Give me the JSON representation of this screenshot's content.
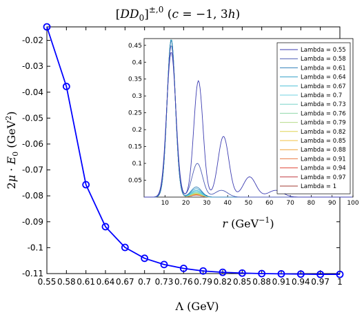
{
  "chart_data": [
    {
      "type": "line",
      "title": "[DD_0]^{±,0} (c = −1, 3h)",
      "xlabel": "Λ (GeV)",
      "ylabel": "2μ · E_0 (GeV²)",
      "x": [
        0.55,
        0.58,
        0.61,
        0.64,
        0.67,
        0.7,
        0.73,
        0.76,
        0.79,
        0.82,
        0.85,
        0.88,
        0.91,
        0.94,
        0.97,
        1
      ],
      "x_tick_labels": [
        "0.55",
        "0.58",
        "0.61",
        "0.64",
        "0.67",
        "0.7",
        "0.73",
        "0.76",
        "0.79",
        "0.82",
        "0.85",
        "0.88",
        "0.91",
        "0.94",
        "0.97",
        "1"
      ],
      "y_ticks": [
        -0.02,
        -0.03,
        -0.04,
        -0.05,
        -0.06,
        -0.07,
        -0.08,
        -0.09,
        -0.1,
        -0.11
      ],
      "y_tick_labels": [
        "-0.02",
        "-0.03",
        "-0.04",
        "-0.05",
        "-0.06",
        "-0.07",
        "-0.08",
        "-0.09",
        "-0.1",
        "-0.11"
      ],
      "ylim": [
        -0.11,
        -0.0148
      ],
      "xlim": [
        0.55,
        1
      ],
      "grid": false,
      "series": [
        {
          "color": "#0000ff",
          "marker": "circle-open",
          "values": [
            -0.0148,
            -0.0378,
            -0.0757,
            -0.0919,
            -0.0999,
            -0.1041,
            -0.1065,
            -0.108,
            -0.109,
            -0.1095,
            -0.1098,
            -0.11,
            -0.1101,
            -0.1102,
            -0.1103,
            -0.1103
          ]
        }
      ]
    },
    {
      "type": "line",
      "xlabel": "r (GeV^{-1})",
      "ylabel": "",
      "xlim": [
        0,
        100
      ],
      "ylim": [
        0,
        0.47
      ],
      "x_ticks": [
        10,
        20,
        30,
        40,
        50,
        60,
        70,
        80,
        90,
        100
      ],
      "x_tick_labels": [
        "10",
        "20",
        "30",
        "40",
        "50",
        "60",
        "70",
        "80",
        "90",
        "100"
      ],
      "y_ticks": [
        0.05,
        0.1,
        0.15,
        0.2,
        0.25,
        0.3,
        0.35,
        0.4,
        0.45
      ],
      "y_tick_labels": [
        "0.05",
        "0.1",
        "0.15",
        "0.2",
        "0.25",
        "0.3",
        "0.35",
        "0.4",
        "0.45"
      ],
      "legend_position": "top-right",
      "series": [
        {
          "name": "Lambda = 0.55",
          "color": "#3b3bb0",
          "peaks": [
            {
              "r": 13,
              "h": 0.43,
              "w": 2.2
            },
            {
              "r": 26,
              "h": 0.345,
              "w": 2.2
            },
            {
              "r": 38,
              "h": 0.18,
              "w": 2.6
            },
            {
              "r": 50.5,
              "h": 0.06,
              "w": 3
            },
            {
              "r": 63,
              "h": 0.02,
              "w": 3.5
            }
          ]
        },
        {
          "name": "Lambda = 0.58",
          "color": "#4a5ab4",
          "peaks": [
            {
              "r": 13,
              "h": 0.45,
              "w": 2.1
            },
            {
              "r": 25.5,
              "h": 0.1,
              "w": 2.5
            },
            {
              "r": 37,
              "h": 0.02,
              "w": 3
            }
          ]
        },
        {
          "name": "Lambda = 0.61",
          "color": "#2f7fb8",
          "peaks": [
            {
              "r": 13,
              "h": 0.465,
              "w": 2
            },
            {
              "r": 25,
              "h": 0.03,
              "w": 2.5
            }
          ]
        },
        {
          "name": "Lambda = 0.64",
          "color": "#35a0c8",
          "peaks": [
            {
              "r": 13,
              "h": 0.468,
              "w": 2
            },
            {
              "r": 25,
              "h": 0.025,
              "w": 2.5
            }
          ]
        },
        {
          "name": "Lambda = 0.67",
          "color": "#4fc0d8",
          "peaks": [
            {
              "r": 13,
              "h": 0.468,
              "w": 2
            },
            {
              "r": 25,
              "h": 0.02,
              "w": 2.5
            }
          ]
        },
        {
          "name": "Lambda = 0.7",
          "color": "#6fd0e0",
          "peaks": [
            {
              "r": 13,
              "h": 0.468,
              "w": 2
            },
            {
              "r": 25,
              "h": 0.018,
              "w": 2.5
            }
          ]
        },
        {
          "name": "Lambda = 0.73",
          "color": "#79d4c8",
          "peaks": [
            {
              "r": 13,
              "h": 0.468,
              "w": 2
            },
            {
              "r": 25,
              "h": 0.015,
              "w": 2.5
            }
          ]
        },
        {
          "name": "Lambda = 0.76",
          "color": "#8ed8a8",
          "peaks": [
            {
              "r": 13,
              "h": 0.468,
              "w": 2
            },
            {
              "r": 25,
              "h": 0.013,
              "w": 2.5
            }
          ]
        },
        {
          "name": "Lambda = 0.79",
          "color": "#b4dc88",
          "peaks": [
            {
              "r": 13,
              "h": 0.468,
              "w": 2
            },
            {
              "r": 25,
              "h": 0.011,
              "w": 2.5
            }
          ]
        },
        {
          "name": "Lambda = 0.82",
          "color": "#e0d450",
          "peaks": [
            {
              "r": 13,
              "h": 0.468,
              "w": 2
            },
            {
              "r": 25,
              "h": 0.01,
              "w": 2.5
            }
          ]
        },
        {
          "name": "Lambda = 0.85",
          "color": "#f0c040",
          "peaks": [
            {
              "r": 13,
              "h": 0.468,
              "w": 2
            },
            {
              "r": 25,
              "h": 0.009,
              "w": 2.5
            }
          ]
        },
        {
          "name": "Lambda = 0.88",
          "color": "#f0a030",
          "peaks": [
            {
              "r": 13,
              "h": 0.468,
              "w": 2
            },
            {
              "r": 25,
              "h": 0.008,
              "w": 2.5
            }
          ]
        },
        {
          "name": "Lambda = 0.91",
          "color": "#e87840",
          "peaks": [
            {
              "r": 13,
              "h": 0.468,
              "w": 2
            },
            {
              "r": 25,
              "h": 0.008,
              "w": 2.5
            }
          ]
        },
        {
          "name": "Lambda = 0.94",
          "color": "#e04a3a",
          "peaks": [
            {
              "r": 13,
              "h": 0.468,
              "w": 2
            },
            {
              "r": 25,
              "h": 0.007,
              "w": 2.5
            }
          ]
        },
        {
          "name": "Lambda = 0.97",
          "color": "#c03a40",
          "peaks": [
            {
              "r": 13,
              "h": 0.468,
              "w": 2
            },
            {
              "r": 25,
              "h": 0.007,
              "w": 2.5
            }
          ]
        },
        {
          "name": "Lambda = 1",
          "color": "#a03830",
          "peaks": [
            {
              "r": 13,
              "h": 0.468,
              "w": 2
            },
            {
              "r": 25,
              "h": 0.006,
              "w": 2.5
            }
          ]
        }
      ]
    }
  ]
}
